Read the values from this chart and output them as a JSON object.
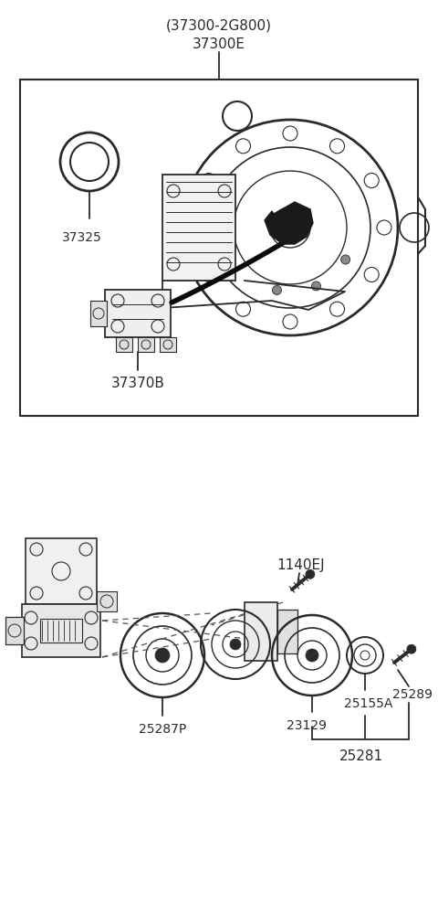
{
  "bg_color": "#ffffff",
  "line_color": "#2a2a2a",
  "text_color": "#2a2a2a",
  "fig_width": 4.8,
  "fig_height": 10.12,
  "dpi": 100,
  "top_label_1": "(37300-2G800)",
  "top_label_2": "37300E",
  "label_37325": "37325",
  "label_37370B": "37370B",
  "label_1140EJ": "1140EJ",
  "label_25287P": "25287P",
  "label_23129": "23129",
  "label_25155A": "25155A",
  "label_25289": "25289",
  "label_25281": "25281",
  "font_size_title": 11,
  "font_size_label": 10
}
